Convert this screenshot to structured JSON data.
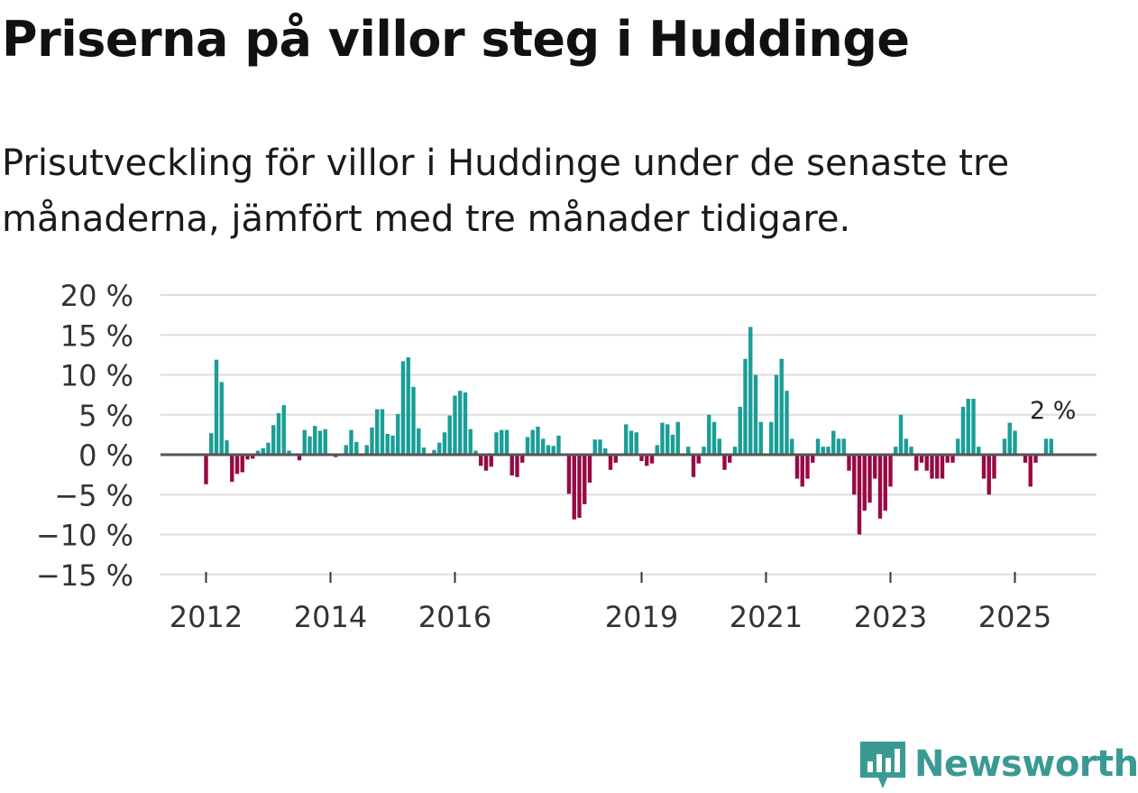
{
  "title": "Priserna på villor steg i Huddinge",
  "subtitle": "Prisutveckling för villor i Huddinge under de senaste tre månaderna, jämfört med tre månader tidigare.",
  "colors": {
    "positive": "#1a9e96",
    "negative": "#970a43",
    "zero_line": "#555555",
    "grid": "#dddddd"
  },
  "brand": {
    "name": "Newsworthy",
    "logo_icon": "bar-chart-icon"
  },
  "chart_data": {
    "type": "bar",
    "title": "Priserna på villor steg i Huddinge",
    "xlabel": "",
    "ylabel": "",
    "ylim": [
      -15,
      20
    ],
    "y_ticks": [
      20,
      15,
      10,
      5,
      0,
      -5,
      -10,
      -15
    ],
    "y_tick_labels": [
      "20 %",
      "15 %",
      "10 %",
      "5 %",
      "0 %",
      "−5 %",
      "−10 %",
      "−15 %"
    ],
    "x_ticks": [
      {
        "label": "2012",
        "index": 0
      },
      {
        "label": "2014",
        "index": 24
      },
      {
        "label": "2016",
        "index": 48
      },
      {
        "label": "2019",
        "index": 84
      },
      {
        "label": "2021",
        "index": 108
      },
      {
        "label": "2023",
        "index": 132
      },
      {
        "label": "2025",
        "index": 156
      }
    ],
    "start_month": "2012-01",
    "frequency": "monthly",
    "last_value_label": "2 %",
    "values": [
      -3.7,
      2.7,
      11.9,
      9.1,
      1.8,
      -3.4,
      -2.4,
      -2.2,
      -0.6,
      -0.5,
      0.5,
      0.8,
      1.5,
      3.7,
      5.2,
      6.2,
      0.5,
      0,
      -0.7,
      3.1,
      2.3,
      3.6,
      3.0,
      3.2,
      0,
      -0.3,
      0,
      1.2,
      3.1,
      1.6,
      0,
      1.2,
      3.4,
      5.7,
      5.7,
      2.6,
      2.4,
      5.1,
      11.7,
      12.2,
      8.5,
      3.3,
      0.9,
      0,
      0.6,
      1.5,
      2.8,
      4.9,
      7.4,
      8.0,
      7.8,
      3.2,
      0.5,
      -1.4,
      -2.0,
      -1.5,
      2.8,
      3.1,
      3.1,
      -2.6,
      -2.8,
      -1.0,
      2.2,
      3.1,
      3.5,
      2.0,
      1.2,
      1.1,
      2.4,
      0,
      -4.9,
      -8.1,
      -7.9,
      -6.2,
      -3.5,
      1.9,
      1.9,
      0.8,
      -1.9,
      -1.0,
      0,
      3.8,
      3.0,
      2.8,
      -0.8,
      -1.4,
      -1.1,
      1.2,
      4.0,
      3.8,
      2.5,
      4.1,
      0,
      1.0,
      -2.8,
      -1.1,
      1.0,
      5.0,
      4.1,
      2.0,
      -1.9,
      -1.0,
      1.0,
      6.0,
      12.0,
      16.0,
      10.0,
      4.1,
      0,
      4.1,
      10.0,
      12.0,
      8.0,
      2.0,
      -3.0,
      -4.0,
      -3.0,
      -1.0,
      2.0,
      1.0,
      1.0,
      3.0,
      2.0,
      2.0,
      -2.0,
      -5.0,
      -10.0,
      -7.0,
      -6.0,
      -3.0,
      -8.0,
      -7.0,
      -4.0,
      1.0,
      5.0,
      2.0,
      1.0,
      -2.0,
      -1.0,
      -2.0,
      -3.0,
      -3.0,
      -3.0,
      -1.0,
      -1.0,
      2.0,
      6.0,
      7.0,
      7.0,
      1.0,
      -3.0,
      -5.0,
      -3.0,
      0,
      2.0,
      4.0,
      3.0,
      0,
      -1.0,
      -4.0,
      -1.0,
      0,
      2.0,
      2.0
    ]
  }
}
